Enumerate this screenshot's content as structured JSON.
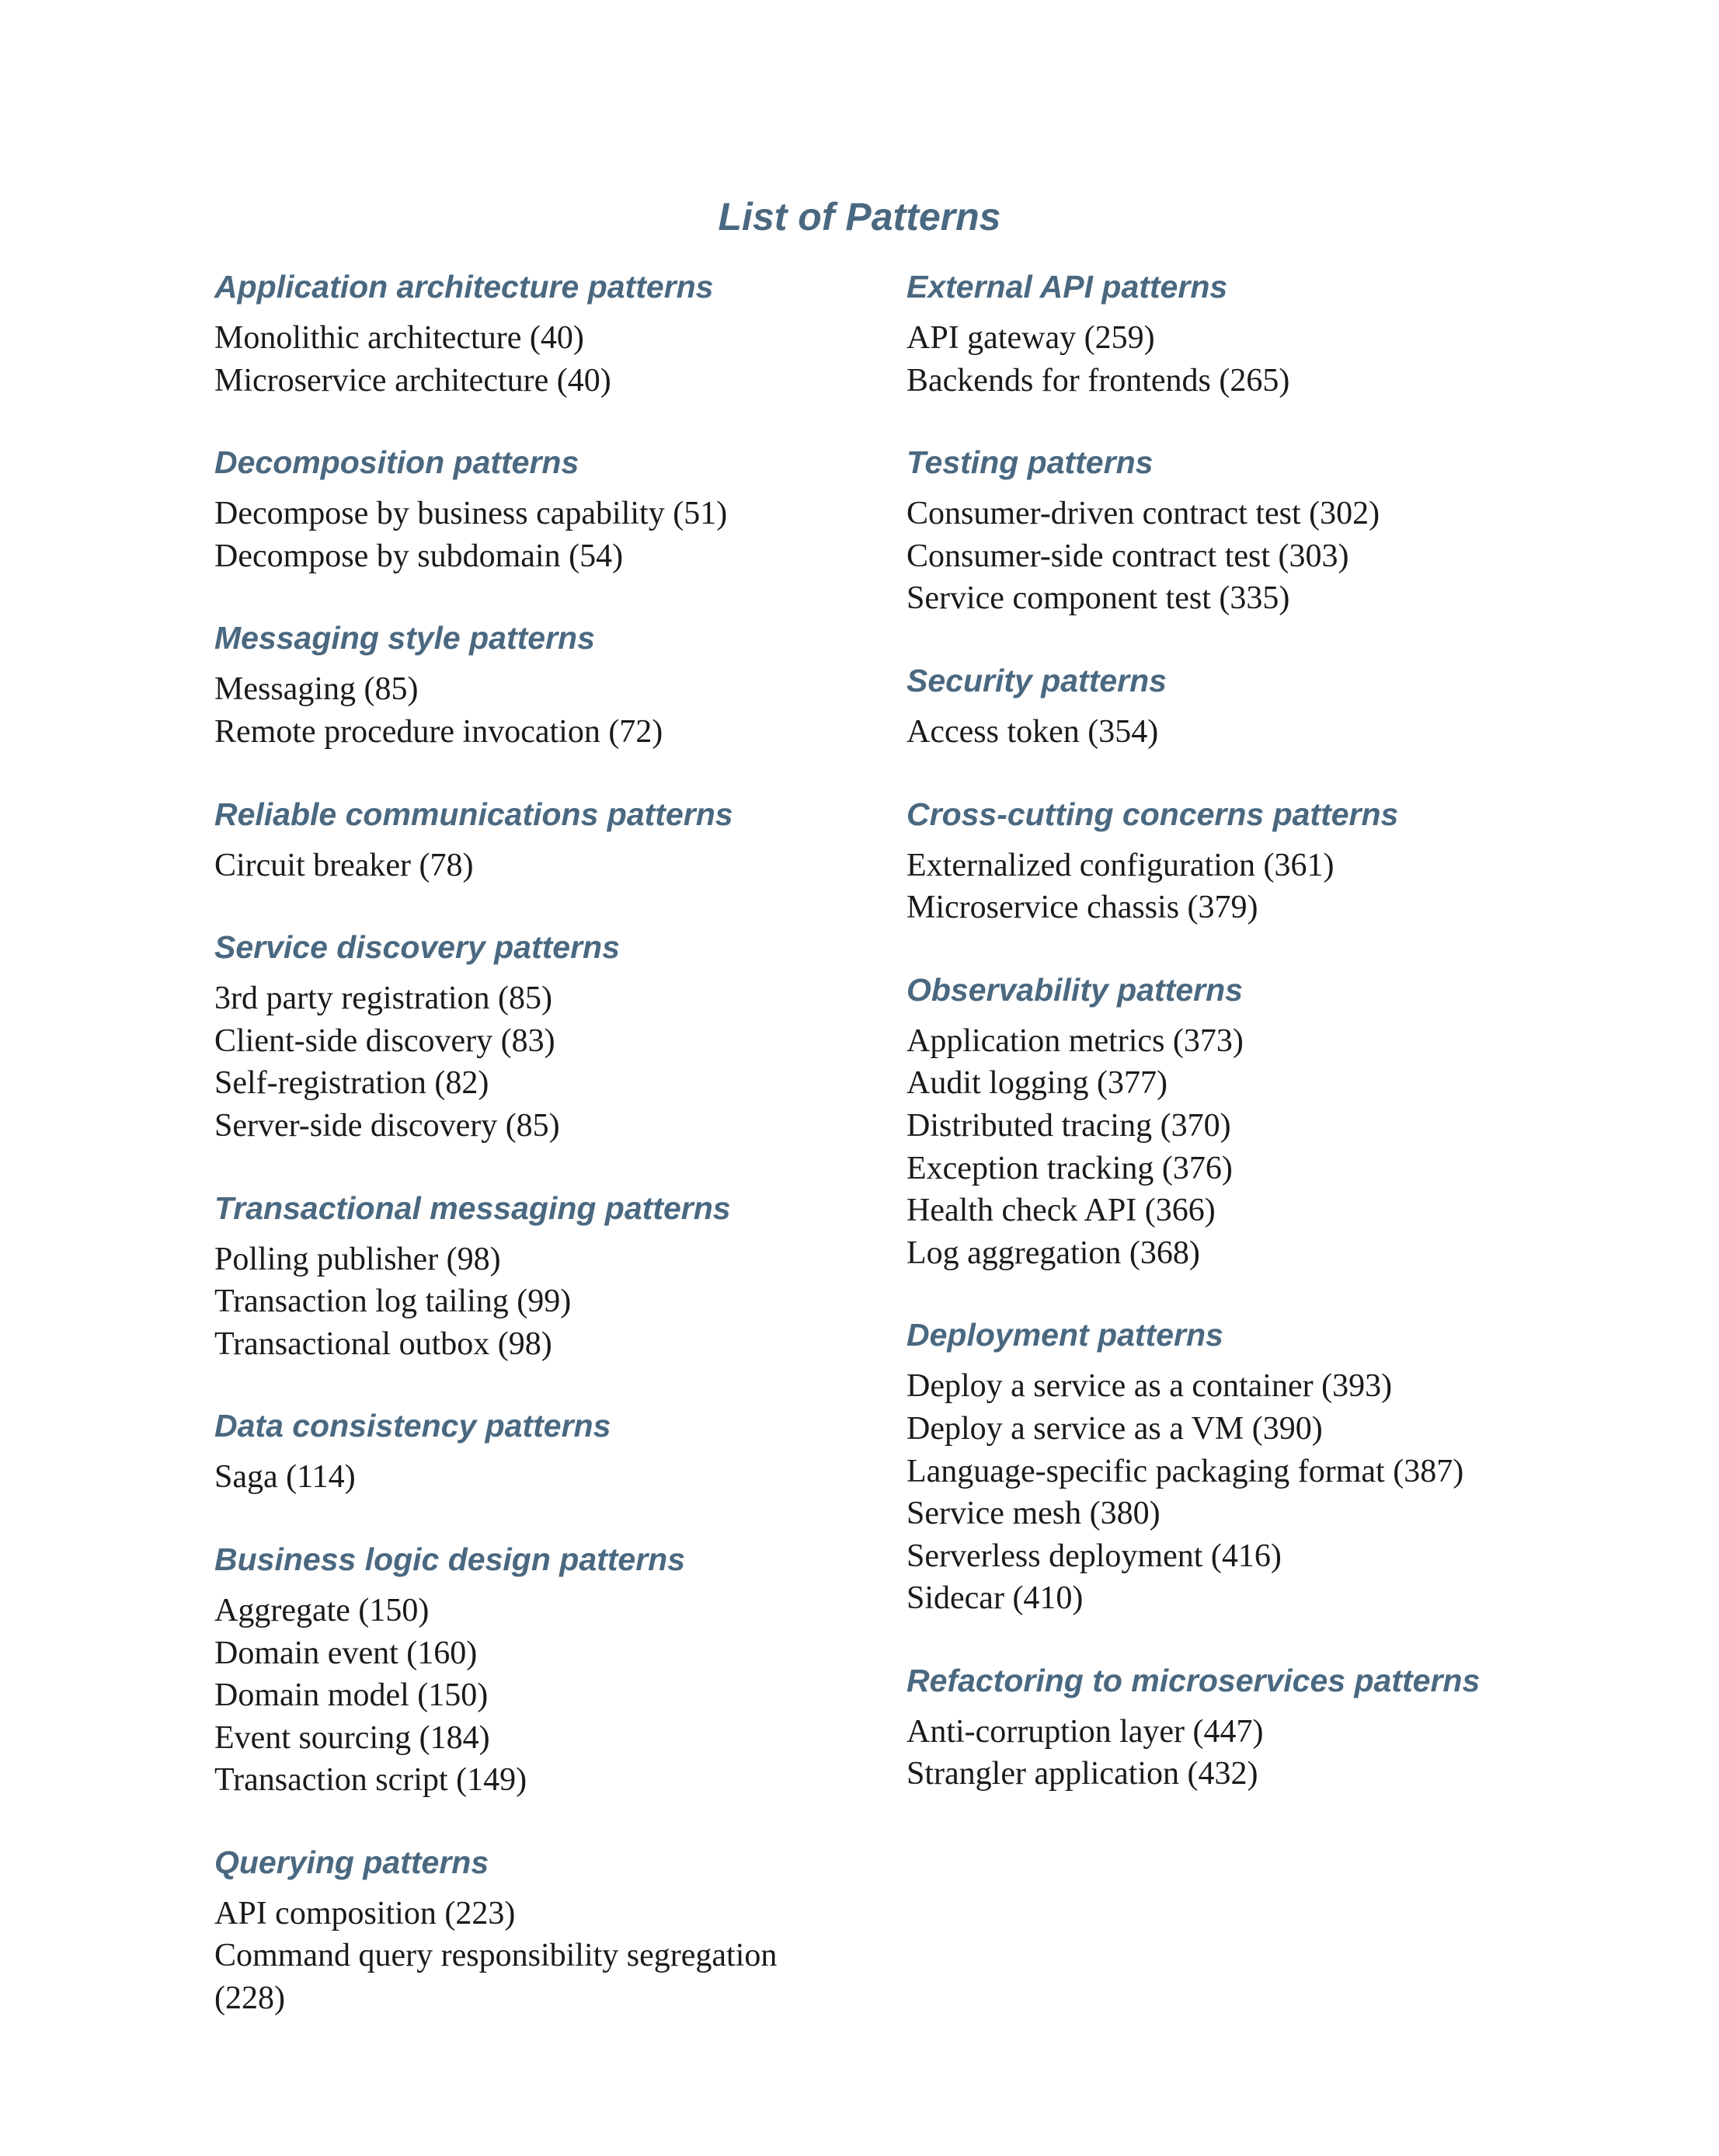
{
  "page": {
    "title": "List of Patterns"
  },
  "left_column": [
    {
      "heading": "Application architecture patterns",
      "items": [
        "Monolithic architecture (40)",
        "Microservice architecture (40)"
      ]
    },
    {
      "heading": "Decomposition patterns",
      "items": [
        "Decompose by business capability (51)",
        "Decompose by subdomain (54)"
      ]
    },
    {
      "heading": "Messaging style patterns",
      "items": [
        "Messaging (85)",
        "Remote procedure invocation (72)"
      ]
    },
    {
      "heading": "Reliable communications patterns",
      "items": [
        "Circuit breaker (78)"
      ]
    },
    {
      "heading": "Service discovery patterns",
      "items": [
        "3rd party registration (85)",
        "Client-side discovery (83)",
        "Self-registration (82)",
        "Server-side discovery (85)"
      ]
    },
    {
      "heading": "Transactional messaging patterns",
      "items": [
        "Polling publisher (98)",
        "Transaction log tailing (99)",
        "Transactional outbox (98)"
      ]
    },
    {
      "heading": "Data consistency patterns",
      "items": [
        "Saga (114)"
      ]
    },
    {
      "heading": "Business logic design patterns",
      "items": [
        "Aggregate (150)",
        "Domain event (160)",
        "Domain model (150)",
        "Event sourcing (184)",
        "Transaction script (149)"
      ]
    },
    {
      "heading": "Querying patterns",
      "items": [
        "API composition (223)",
        "Command query responsibility segregation",
        "(228)"
      ]
    }
  ],
  "right_column": [
    {
      "heading": "External API patterns",
      "items": [
        "API gateway (259)",
        "Backends for frontends (265)"
      ]
    },
    {
      "heading": "Testing patterns",
      "items": [
        "Consumer-driven contract test (302)",
        "Consumer-side contract test (303)",
        "Service component test (335)"
      ]
    },
    {
      "heading": "Security patterns",
      "items": [
        "Access token (354)"
      ]
    },
    {
      "heading": "Cross-cutting concerns patterns",
      "items": [
        "Externalized configuration (361)",
        "Microservice chassis (379)"
      ]
    },
    {
      "heading": "Observability patterns",
      "items": [
        "Application metrics (373)",
        "Audit logging (377)",
        "Distributed tracing (370)",
        "Exception tracking (376)",
        "Health check API (366)",
        "Log aggregation (368)"
      ]
    },
    {
      "heading": "Deployment patterns",
      "items": [
        "Deploy a service as a container (393)",
        "Deploy a service as a VM (390)",
        "Language-specific packaging format (387)",
        "Service mesh (380)",
        "Serverless deployment (416)",
        "Sidecar (410)"
      ]
    },
    {
      "heading": "Refactoring to microservices patterns",
      "items": [
        "Anti-corruption layer (447)",
        "Strangler application (432)"
      ]
    }
  ]
}
